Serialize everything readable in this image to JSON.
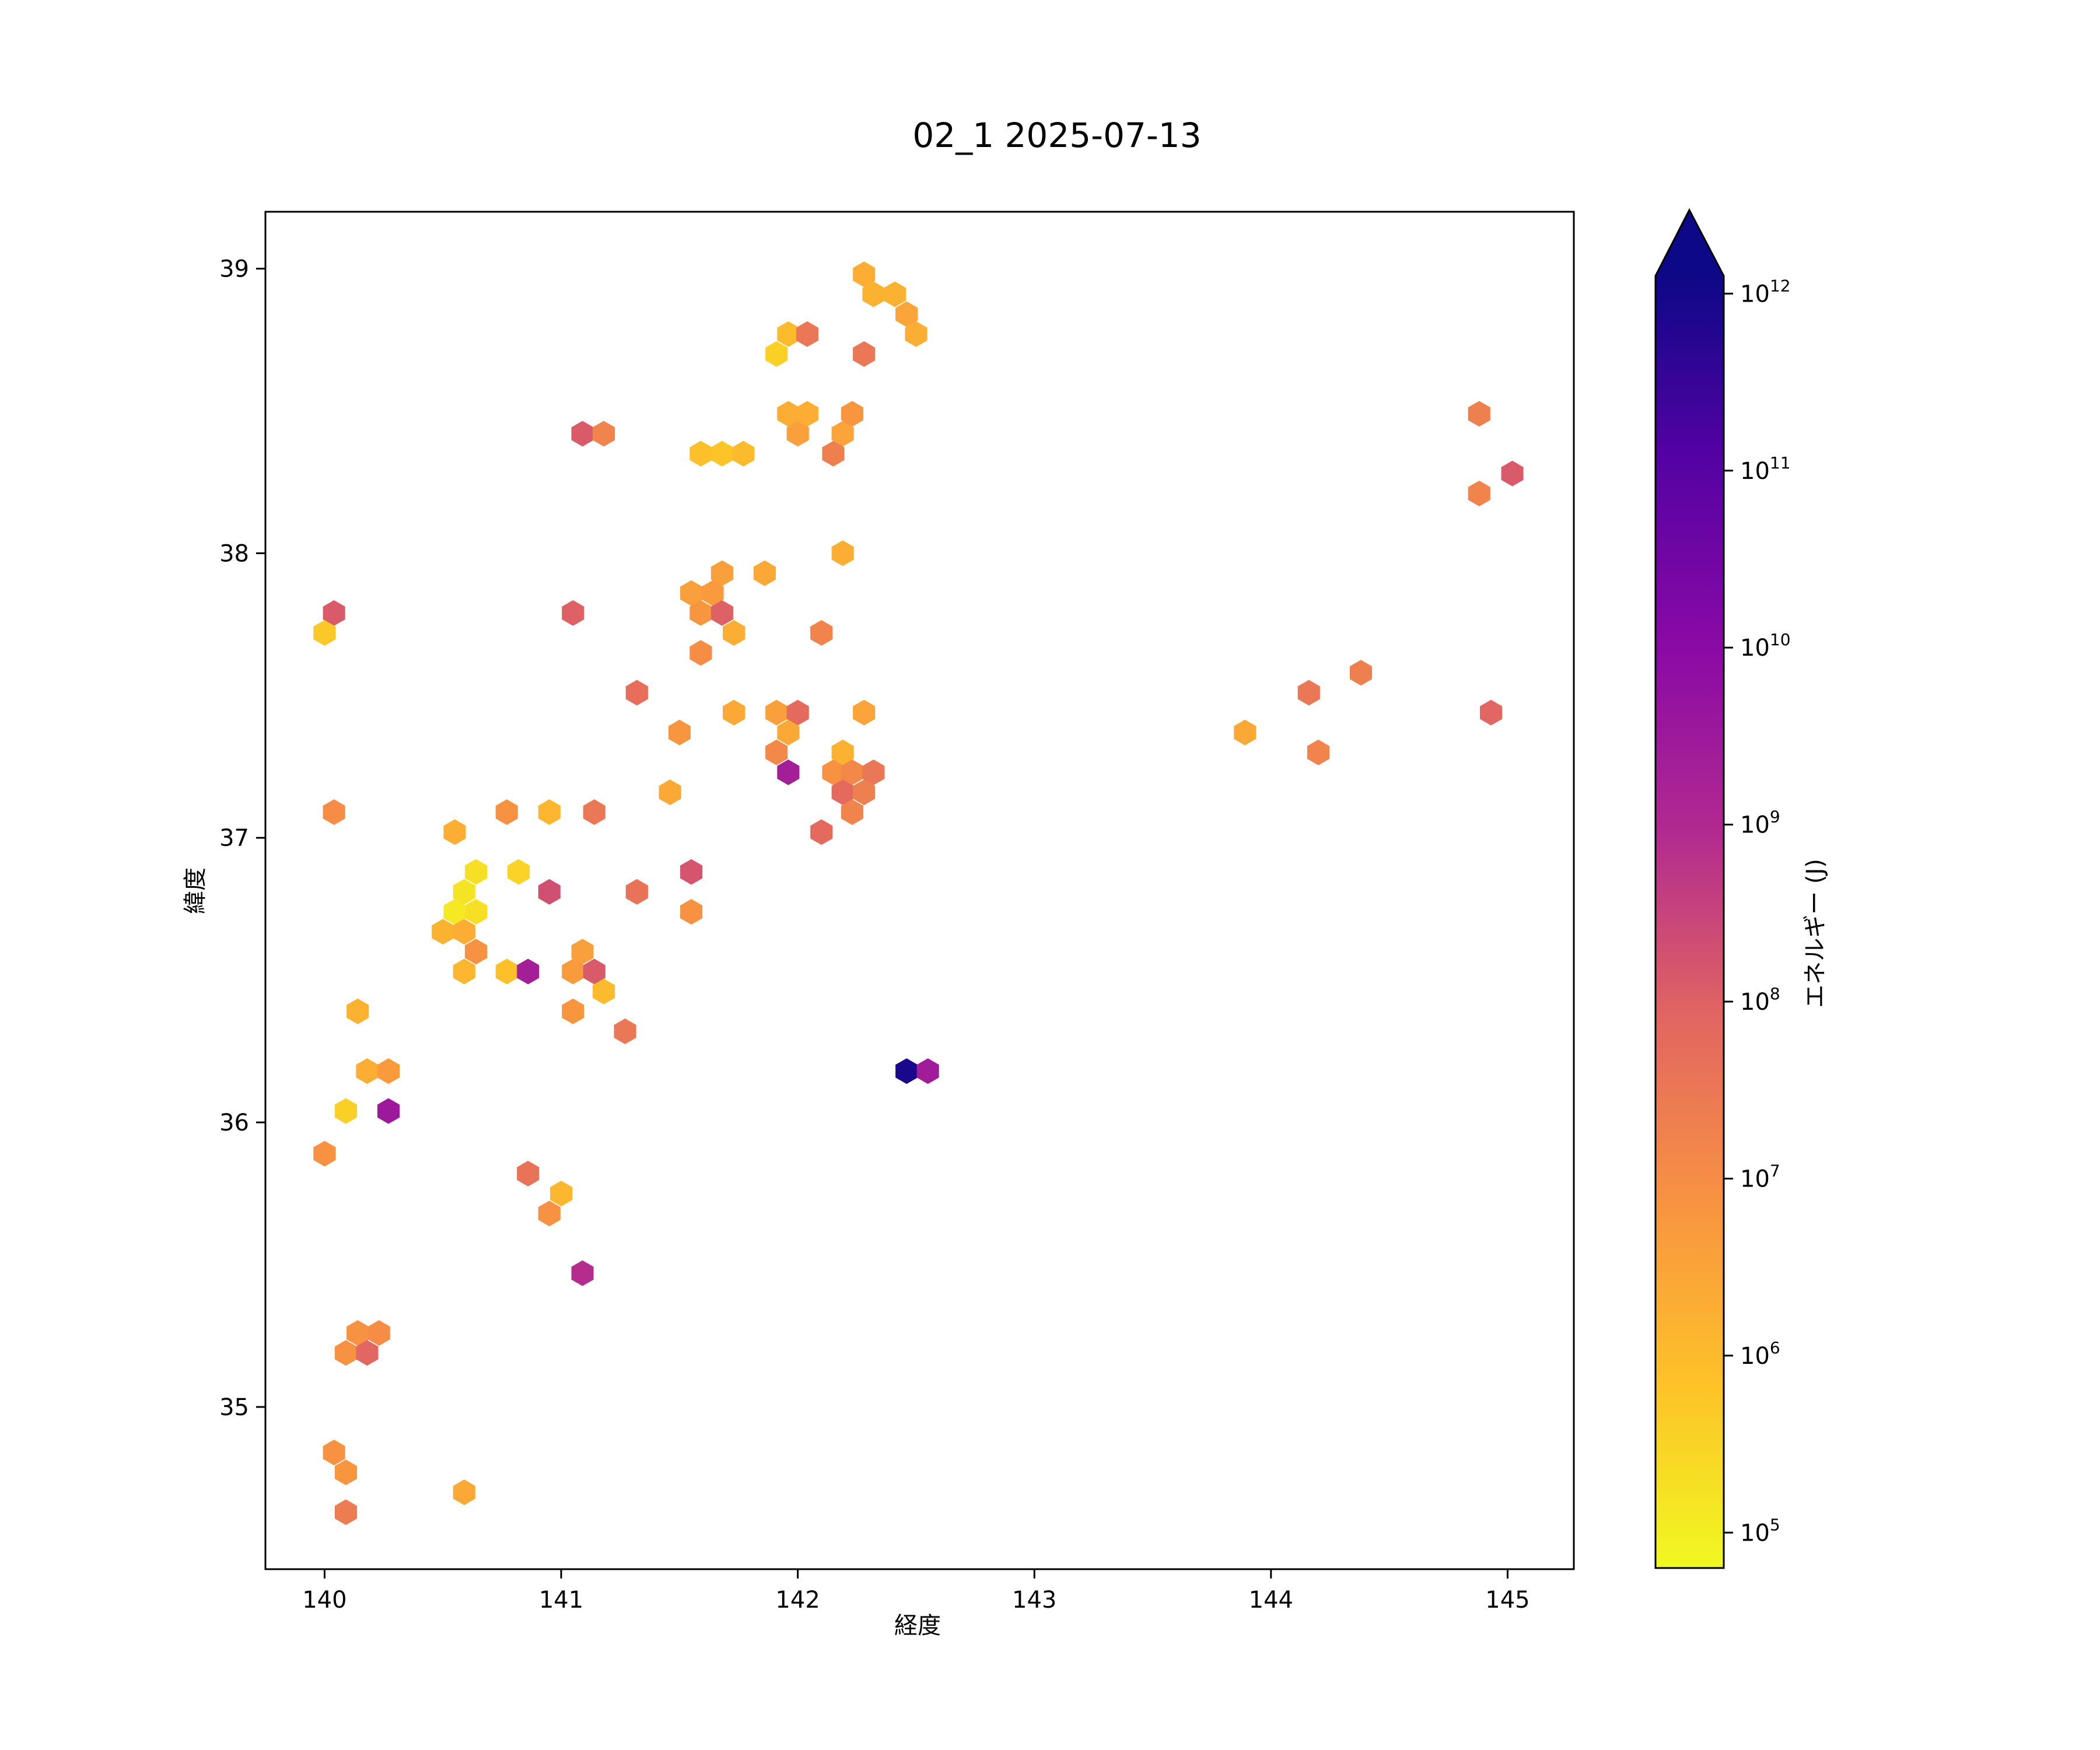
{
  "chart_data": {
    "type": "scatter",
    "marker": "hexagon",
    "title": "02_1 2025-07-13",
    "xlabel": "経度",
    "ylabel": "緯度",
    "xlim": [
      139.75,
      145.28
    ],
    "ylim": [
      34.43,
      39.2
    ],
    "xticks": [
      140,
      141,
      142,
      143,
      144,
      145
    ],
    "yticks": [
      35,
      36,
      37,
      38,
      39
    ],
    "grid": false,
    "colorbar": {
      "label": "エネルギー (J)",
      "scale": "log",
      "colormap": "plasma",
      "range_log10": [
        4.8,
        12.1
      ],
      "extend": "max",
      "ticks": [
        {
          "exp": 5,
          "base": "10",
          "sup": "5"
        },
        {
          "exp": 6,
          "base": "10",
          "sup": "6"
        },
        {
          "exp": 7,
          "base": "10",
          "sup": "7"
        },
        {
          "exp": 8,
          "base": "10",
          "sup": "8"
        },
        {
          "exp": 9,
          "base": "10",
          "sup": "9"
        },
        {
          "exp": 10,
          "base": "10",
          "sup": "10"
        },
        {
          "exp": 11,
          "base": "10",
          "sup": "11"
        },
        {
          "exp": 12,
          "base": "10",
          "sup": "12"
        }
      ]
    },
    "points_columns": [
      "lon",
      "lat",
      "log10_energy_J"
    ],
    "points": [
      [
        142.28,
        38.98,
        6.3
      ],
      [
        142.32,
        38.91,
        6.2
      ],
      [
        142.41,
        38.91,
        6.2
      ],
      [
        142.46,
        38.84,
        6.5
      ],
      [
        142.5,
        38.77,
        6.3
      ],
      [
        141.96,
        38.77,
        6.0
      ],
      [
        142.04,
        38.77,
        7.5
      ],
      [
        141.91,
        38.7,
        5.6
      ],
      [
        142.28,
        38.7,
        7.5
      ],
      [
        141.96,
        38.49,
        6.3
      ],
      [
        142.0,
        38.42,
        6.6
      ],
      [
        142.04,
        38.49,
        6.3
      ],
      [
        142.19,
        38.42,
        6.5
      ],
      [
        142.23,
        38.49,
        6.8
      ],
      [
        142.15,
        38.35,
        7.3
      ],
      [
        141.59,
        38.35,
        5.9
      ],
      [
        141.68,
        38.35,
        5.8
      ],
      [
        141.77,
        38.35,
        6.0
      ],
      [
        141.09,
        38.42,
        8.1
      ],
      [
        141.18,
        38.42,
        7.2
      ],
      [
        142.19,
        38.0,
        6.3
      ],
      [
        141.86,
        37.93,
        6.4
      ],
      [
        141.68,
        37.93,
        6.6
      ],
      [
        141.55,
        37.86,
        6.6
      ],
      [
        141.64,
        37.86,
        6.7
      ],
      [
        141.59,
        37.79,
        6.8
      ],
      [
        141.68,
        37.79,
        8.0
      ],
      [
        141.73,
        37.72,
        6.3
      ],
      [
        142.1,
        37.72,
        7.2
      ],
      [
        141.59,
        37.65,
        7.0
      ],
      [
        141.05,
        37.79,
        8.0
      ],
      [
        140.04,
        37.79,
        8.1
      ],
      [
        140.0,
        37.72,
        5.7
      ],
      [
        141.32,
        37.51,
        7.7
      ],
      [
        141.73,
        37.44,
        6.4
      ],
      [
        141.91,
        37.44,
        6.6
      ],
      [
        142.0,
        37.44,
        7.8
      ],
      [
        142.28,
        37.44,
        6.5
      ],
      [
        141.5,
        37.37,
        6.8
      ],
      [
        141.96,
        37.37,
        6.4
      ],
      [
        141.91,
        37.3,
        7.1
      ],
      [
        142.19,
        37.3,
        6.2
      ],
      [
        141.96,
        37.23,
        9.3
      ],
      [
        142.15,
        37.23,
        6.9
      ],
      [
        142.23,
        37.23,
        7.1
      ],
      [
        142.32,
        37.23,
        7.5
      ],
      [
        142.19,
        37.16,
        7.8
      ],
      [
        142.28,
        37.16,
        7.3
      ],
      [
        141.46,
        37.16,
        6.4
      ],
      [
        142.23,
        37.09,
        7.2
      ],
      [
        142.1,
        37.02,
        7.8
      ],
      [
        140.04,
        37.09,
        7.0
      ],
      [
        140.77,
        37.09,
        6.9
      ],
      [
        140.95,
        37.09,
        6.1
      ],
      [
        141.14,
        37.09,
        7.5
      ],
      [
        140.55,
        37.02,
        6.3
      ],
      [
        140.64,
        36.88,
        5.3
      ],
      [
        140.82,
        36.88,
        5.5
      ],
      [
        140.59,
        36.81,
        5.2
      ],
      [
        140.55,
        36.74,
        5.1
      ],
      [
        140.64,
        36.74,
        5.3
      ],
      [
        140.5,
        36.67,
        6.2
      ],
      [
        140.59,
        36.67,
        6.3
      ],
      [
        140.64,
        36.6,
        6.9
      ],
      [
        140.59,
        36.53,
        6.1
      ],
      [
        140.77,
        36.53,
        5.9
      ],
      [
        140.86,
        36.53,
        9.3
      ],
      [
        140.95,
        36.81,
        8.3
      ],
      [
        141.32,
        36.81,
        7.6
      ],
      [
        141.55,
        36.88,
        8.2
      ],
      [
        141.55,
        36.74,
        6.9
      ],
      [
        141.09,
        36.6,
        6.6
      ],
      [
        141.05,
        36.53,
        6.7
      ],
      [
        141.14,
        36.53,
        8.1
      ],
      [
        141.18,
        36.46,
        6.0
      ],
      [
        141.05,
        36.39,
        6.8
      ],
      [
        141.27,
        36.32,
        7.5
      ],
      [
        140.14,
        36.39,
        6.2
      ],
      [
        140.18,
        36.18,
        6.3
      ],
      [
        140.27,
        36.18,
        6.7
      ],
      [
        140.09,
        36.04,
        5.6
      ],
      [
        140.27,
        36.04,
        9.5
      ],
      [
        140.0,
        35.89,
        6.9
      ],
      [
        140.86,
        35.82,
        7.6
      ],
      [
        141.0,
        35.75,
        6.1
      ],
      [
        140.95,
        35.68,
        6.9
      ],
      [
        141.09,
        35.47,
        8.9
      ],
      [
        140.14,
        35.26,
        6.9
      ],
      [
        140.23,
        35.26,
        7.0
      ],
      [
        140.09,
        35.19,
        6.9
      ],
      [
        140.18,
        35.19,
        7.9
      ],
      [
        140.04,
        34.84,
        6.9
      ],
      [
        140.09,
        34.77,
        6.8
      ],
      [
        140.59,
        34.7,
        6.4
      ],
      [
        140.09,
        34.63,
        7.4
      ],
      [
        142.46,
        36.18,
        11.9
      ],
      [
        142.55,
        36.18,
        9.4
      ],
      [
        143.89,
        37.37,
        6.4
      ],
      [
        144.16,
        37.51,
        7.5
      ],
      [
        144.2,
        37.3,
        7.2
      ],
      [
        144.38,
        37.58,
        7.3
      ],
      [
        144.88,
        38.49,
        7.3
      ],
      [
        144.88,
        38.21,
        7.2
      ],
      [
        145.02,
        38.28,
        8.1
      ],
      [
        144.93,
        37.44,
        7.9
      ]
    ]
  }
}
